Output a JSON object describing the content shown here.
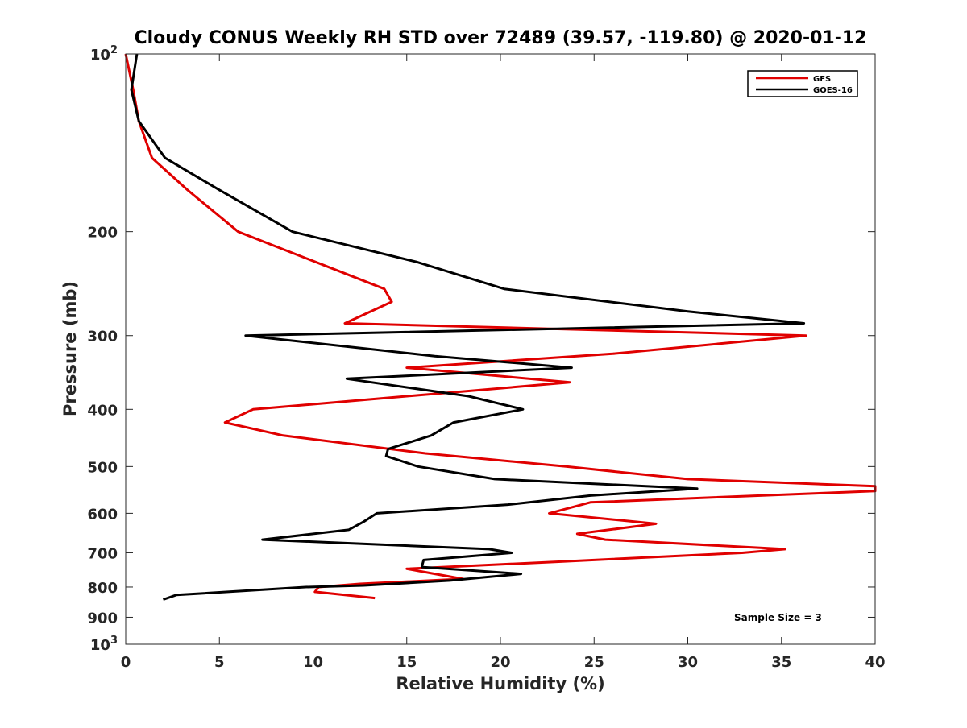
{
  "chart_data": {
    "type": "line",
    "title": "Cloudy CONUS Weekly RH STD over 72489 (39.57, -119.80) @ 2020-01-12",
    "xlabel": "Relative Humidity (%)",
    "ylabel": "Pressure (mb)",
    "xlim": [
      0,
      40
    ],
    "ylim": [
      100,
      1000
    ],
    "y_scale": "log",
    "y_reversed": true,
    "grid": false,
    "legend_position": "top-right",
    "x_ticks": [
      0,
      5,
      10,
      15,
      20,
      25,
      30,
      35,
      40
    ],
    "x_tick_labels": [
      "0",
      "5",
      "10",
      "15",
      "20",
      "25",
      "30",
      "35",
      "40"
    ],
    "y_ticks": [
      100,
      200,
      300,
      400,
      500,
      600,
      700,
      800,
      900,
      1000
    ],
    "y_tick_labels": [
      {
        "base": "10",
        "exp": "2"
      },
      {
        "base": "200",
        "exp": ""
      },
      {
        "base": "300",
        "exp": ""
      },
      {
        "base": "400",
        "exp": ""
      },
      {
        "base": "500",
        "exp": ""
      },
      {
        "base": "600",
        "exp": ""
      },
      {
        "base": "700",
        "exp": ""
      },
      {
        "base": "800",
        "exp": ""
      },
      {
        "base": "900",
        "exp": ""
      },
      {
        "base": "10",
        "exp": "3"
      }
    ],
    "annotation": "Sample Size = 3",
    "series": [
      {
        "name": "GFS",
        "color": "#e00000",
        "points": [
          [
            0.0,
            100
          ],
          [
            0.4,
            115
          ],
          [
            0.7,
            130
          ],
          [
            1.4,
            150
          ],
          [
            3.3,
            170
          ],
          [
            6.0,
            200
          ],
          [
            13.8,
            250
          ],
          [
            14.2,
            263
          ],
          [
            11.7,
            286
          ],
          [
            36.3,
            300
          ],
          [
            26.0,
            322
          ],
          [
            15.0,
            340
          ],
          [
            23.7,
            360
          ],
          [
            15.0,
            380
          ],
          [
            6.8,
            400
          ],
          [
            5.3,
            421
          ],
          [
            8.4,
            443
          ],
          [
            16.0,
            475
          ],
          [
            23.5,
            500
          ],
          [
            30.0,
            525
          ],
          [
            40.0,
            540
          ],
          [
            40.0,
            550
          ],
          [
            24.8,
            575
          ],
          [
            22.6,
            600
          ],
          [
            28.3,
            625
          ],
          [
            24.1,
            650
          ],
          [
            25.6,
            665
          ],
          [
            35.2,
            690
          ],
          [
            32.9,
            700
          ],
          [
            23.0,
            725
          ],
          [
            15.0,
            745
          ],
          [
            16.5,
            760
          ],
          [
            18.0,
            775
          ],
          [
            12.5,
            790
          ],
          [
            10.3,
            800
          ],
          [
            10.1,
            815
          ],
          [
            13.3,
            835
          ]
        ]
      },
      {
        "name": "GOES-16",
        "color": "#000000",
        "points": [
          [
            0.6,
            100
          ],
          [
            0.3,
            115
          ],
          [
            0.7,
            130
          ],
          [
            2.1,
            150
          ],
          [
            5.0,
            170
          ],
          [
            8.9,
            200
          ],
          [
            15.5,
            225
          ],
          [
            20.2,
            250
          ],
          [
            30.0,
            273
          ],
          [
            36.2,
            286
          ],
          [
            6.4,
            300
          ],
          [
            16.5,
            325
          ],
          [
            23.8,
            340
          ],
          [
            11.8,
            355
          ],
          [
            18.3,
            380
          ],
          [
            21.2,
            400
          ],
          [
            17.5,
            421
          ],
          [
            16.3,
            443
          ],
          [
            14.0,
            467
          ],
          [
            13.9,
            480
          ],
          [
            15.6,
            500
          ],
          [
            19.7,
            525
          ],
          [
            30.5,
            545
          ],
          [
            24.8,
            560
          ],
          [
            20.4,
            580
          ],
          [
            13.4,
            600
          ],
          [
            12.7,
            620
          ],
          [
            11.9,
            640
          ],
          [
            7.3,
            665
          ],
          [
            19.4,
            690
          ],
          [
            20.6,
            700
          ],
          [
            15.9,
            720
          ],
          [
            15.8,
            740
          ],
          [
            21.1,
            760
          ],
          [
            17.3,
            780
          ],
          [
            12.7,
            795
          ],
          [
            9.6,
            800
          ],
          [
            2.7,
            825
          ],
          [
            2.0,
            840
          ]
        ]
      }
    ]
  }
}
